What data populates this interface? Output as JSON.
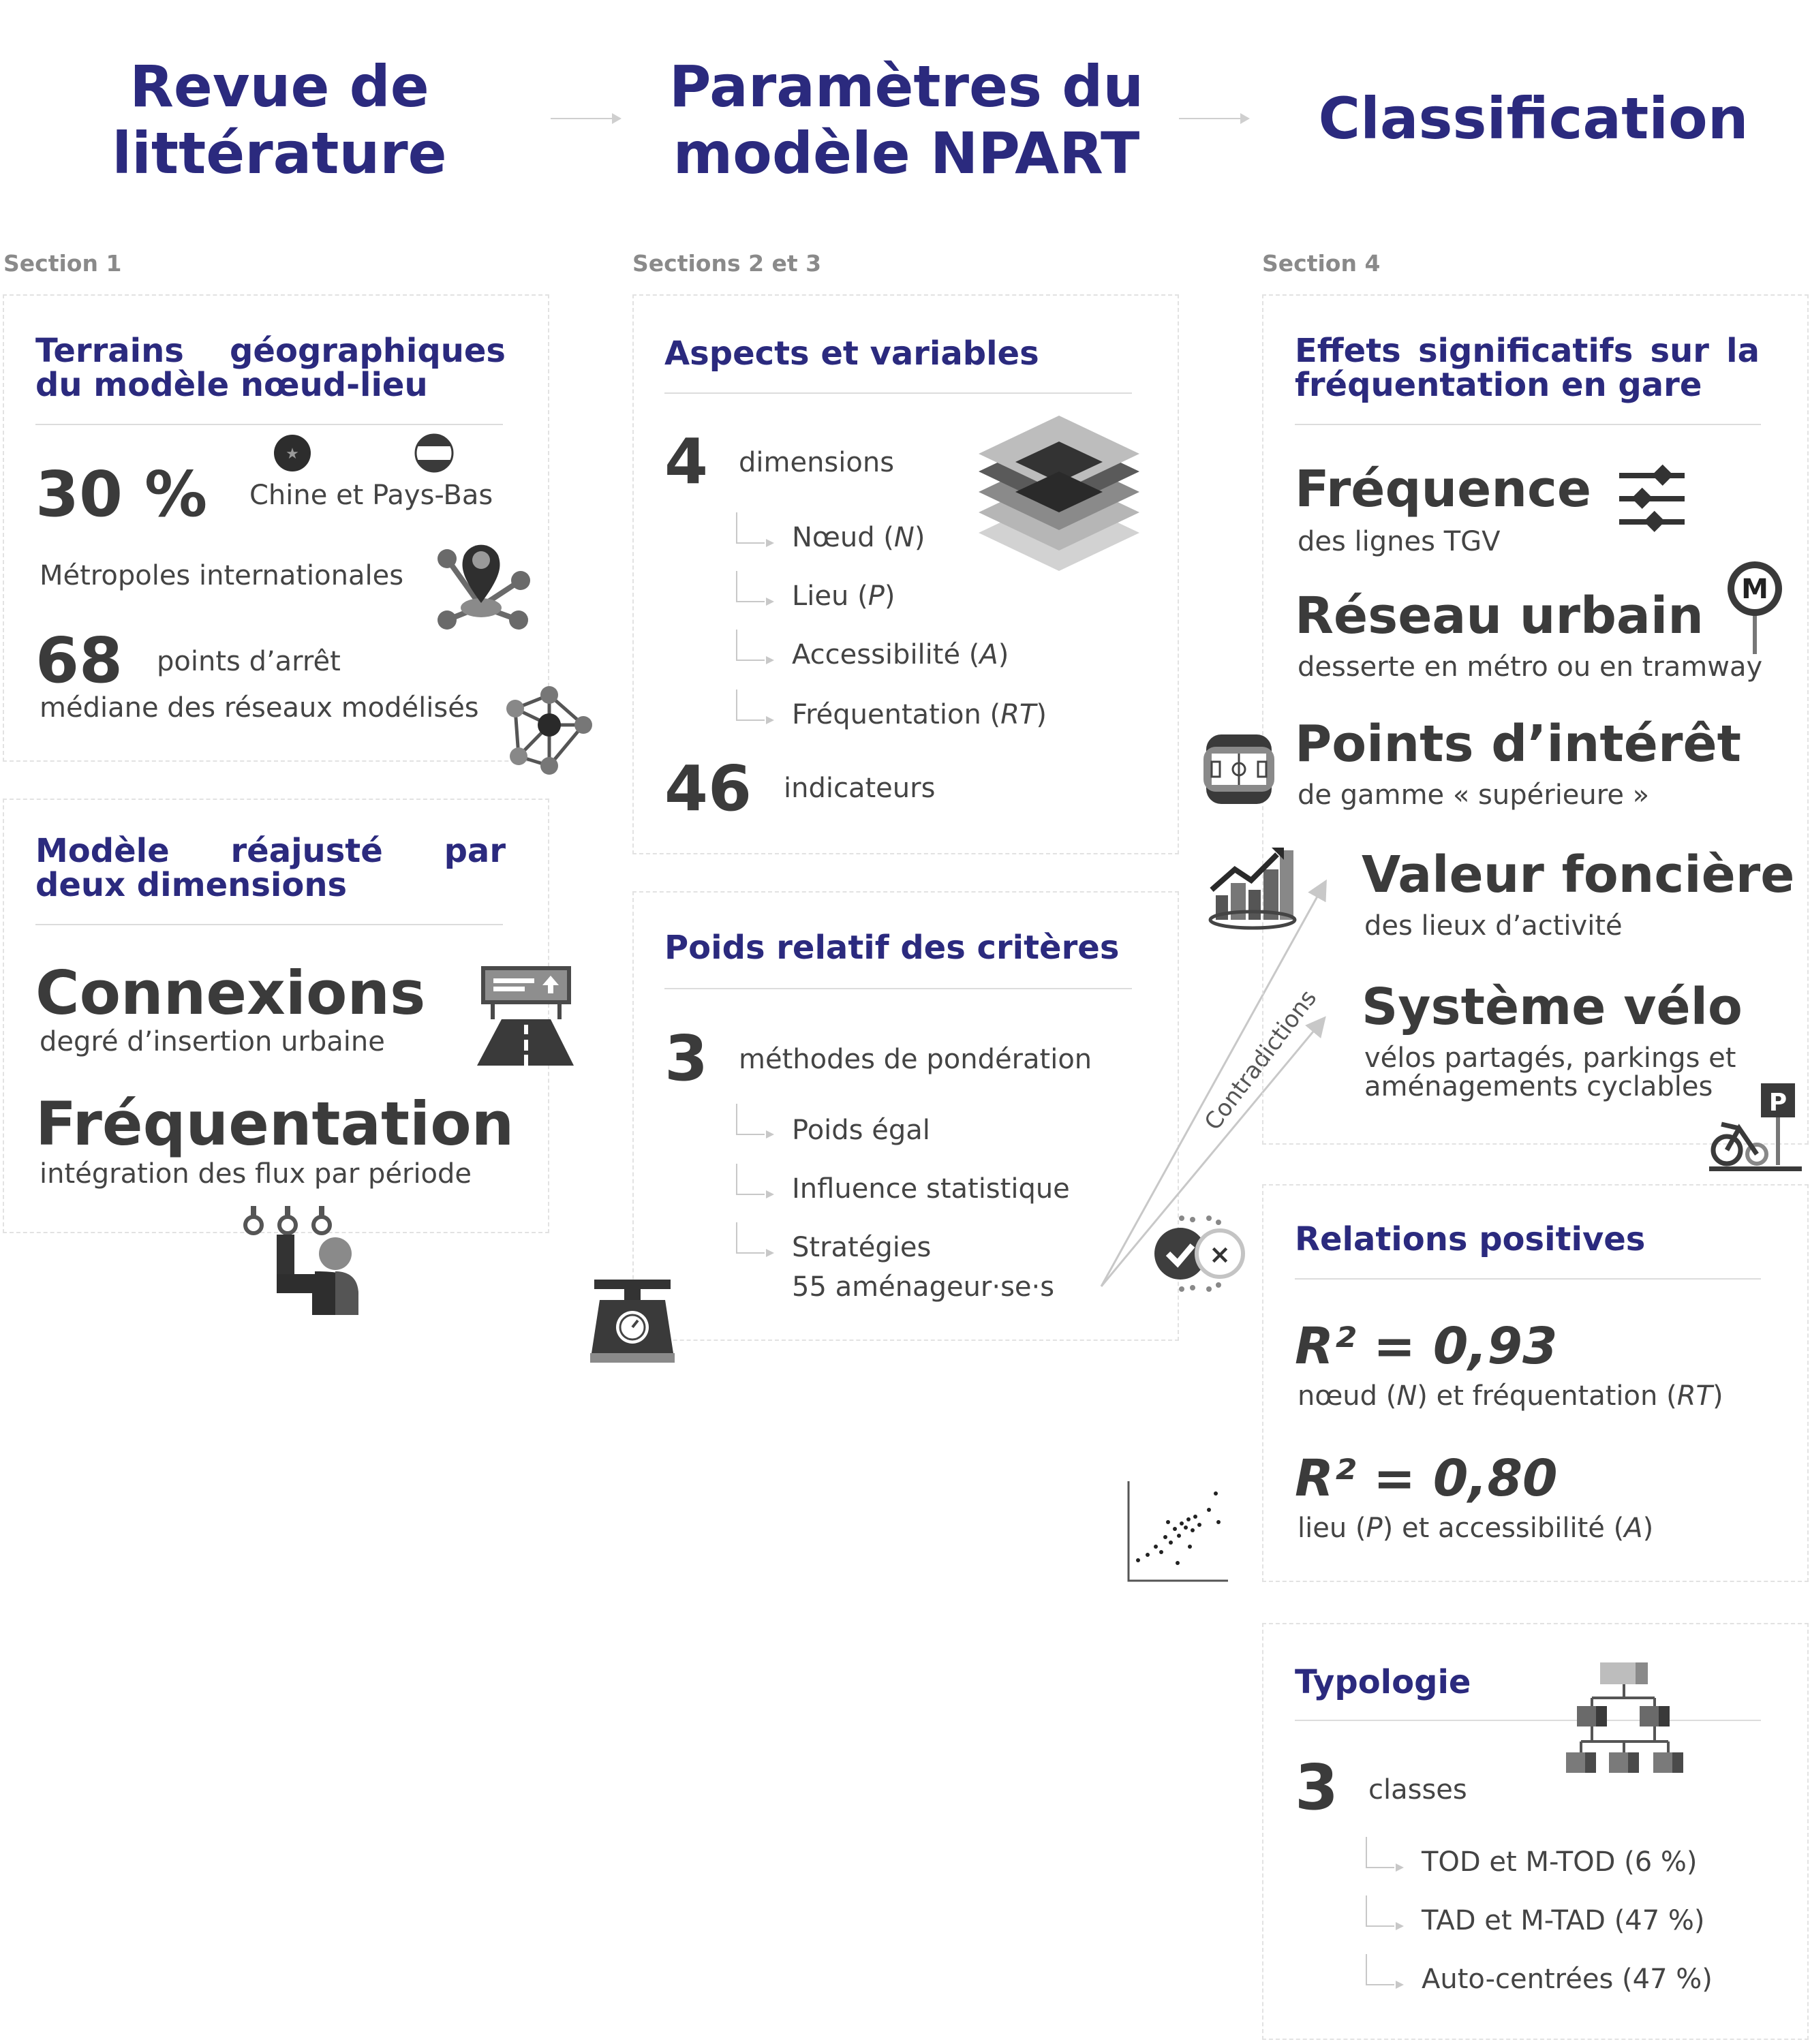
{
  "headers": {
    "col1": "Revue de\nlittérature",
    "col2": "Paramètres du\nmodèle NPART",
    "col3": "Classification"
  },
  "sections": {
    "s1": "Section 1",
    "s2": "Sections 2 et 3",
    "s3": "Section 4"
  },
  "terrains": {
    "title": "Terrains géographiques du modèle nœud-lieu",
    "stat1_value": "30 %",
    "stat1_label": "Chine et Pays-Bas",
    "stat1_sub": "Métropoles internationales",
    "stat2_value": "68",
    "stat2_label": "points d’arrêt",
    "stat2_sub": "médiane des réseaux modélisés"
  },
  "modele": {
    "title": "Modèle réajusté par deux dimensions",
    "d1": "Connexions",
    "d1_sub": "degré d’insertion urbaine",
    "d2": "Fréquentation",
    "d2_sub": "intégration des flux par période"
  },
  "aspects": {
    "title": "Aspects et variables",
    "n_dim": "4",
    "dim_label": "dimensions",
    "dims": [
      "Nœud (",
      "N",
      ")",
      "Lieu (",
      "P",
      ")",
      "Accessibilité (",
      "A",
      ")",
      "Fréquentation (",
      "RT",
      ")"
    ],
    "n_ind": "46",
    "ind_label": "indicateurs"
  },
  "poids": {
    "title": "Poids relatif des critères",
    "n": "3",
    "label": "méthodes de pondération",
    "m1": "Poids égal",
    "m2": "Influence statistique",
    "m3a": "Stratégies",
    "m3b": "55 aménageur·se·s"
  },
  "contradictions": "Contradictions",
  "effets": {
    "title": "Effets significatifs sur la fréquentation en gare",
    "e1": "Fréquence",
    "e1_sub": "des lignes TGV",
    "e2": "Réseau urbain",
    "e2_sub": "desserte en métro ou en tramway",
    "e3": "Points d’intérêt",
    "e3_sub": "de gamme « supérieure »",
    "e4": "Valeur foncière",
    "e4_sub": "des lieux d’activité",
    "e5": "Système vélo",
    "e5_sub1": "vélos partagés, parkings et",
    "e5_sub2": "aménagements cyclables",
    "metro_letter": "M",
    "parking_letter": "P"
  },
  "relations": {
    "title": "Relations positives",
    "r1": "R² = 0,93",
    "r1_sub": [
      "nœud (",
      "N",
      ") et fréquentation (",
      "RT",
      ")"
    ],
    "r2": "R² = 0,80",
    "r2_sub": [
      "lieu (",
      "P",
      ") et accessibilité (",
      "A",
      ")"
    ]
  },
  "typologie": {
    "title": "Typologie",
    "n": "3",
    "label": "classes",
    "c1": "TOD et M-TOD (6 %)",
    "c2": "TAD et M-TAD (47 %)",
    "c3": "Auto-centrées (47 %)"
  },
  "colors": {
    "accent": "#2b2a7e",
    "dark": "#3b3b3b",
    "grey": "#8a8a8a"
  }
}
